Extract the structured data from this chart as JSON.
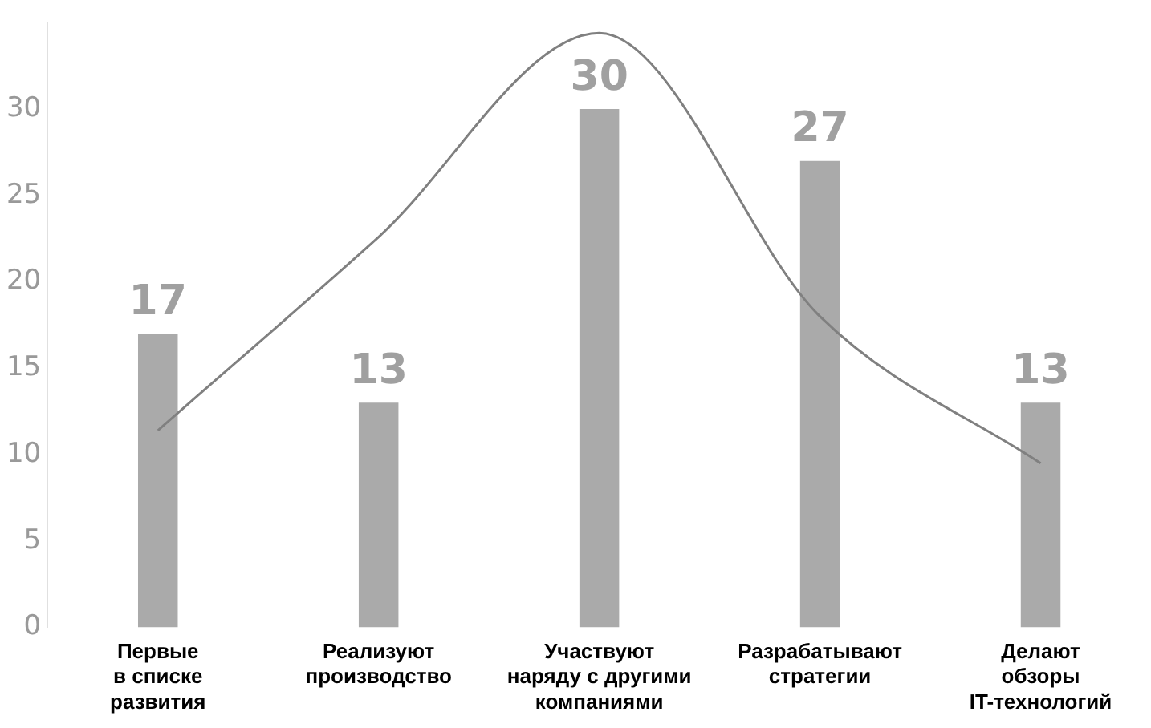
{
  "chart_data": {
    "type": "bar",
    "categories": [
      "Первые\nв списке\nразвития",
      "Реализуют\nпроизводство",
      "Участвуют\nнаряду с другими\nкомпаниями",
      "Разрабатывают\nстратегии",
      "Делают\nобзоры\nIT-технологий"
    ],
    "series": [
      {
        "color": "#aaaaaa",
        "values": [
          17,
          13,
          30,
          27,
          13
        ],
        "value_labels": [
          "17",
          "13",
          "30",
          "27",
          "13"
        ]
      },
      {
        "type": "line",
        "color": "#808080",
        "values": [
          11.4,
          22.6,
          34.4,
          18.0,
          9.5
        ]
      }
    ],
    "ylim": [
      0,
      35
    ],
    "yticks": [
      0,
      5,
      10,
      15,
      20,
      25,
      30
    ],
    "grid": false,
    "legend": false,
    "marker": "none"
  }
}
